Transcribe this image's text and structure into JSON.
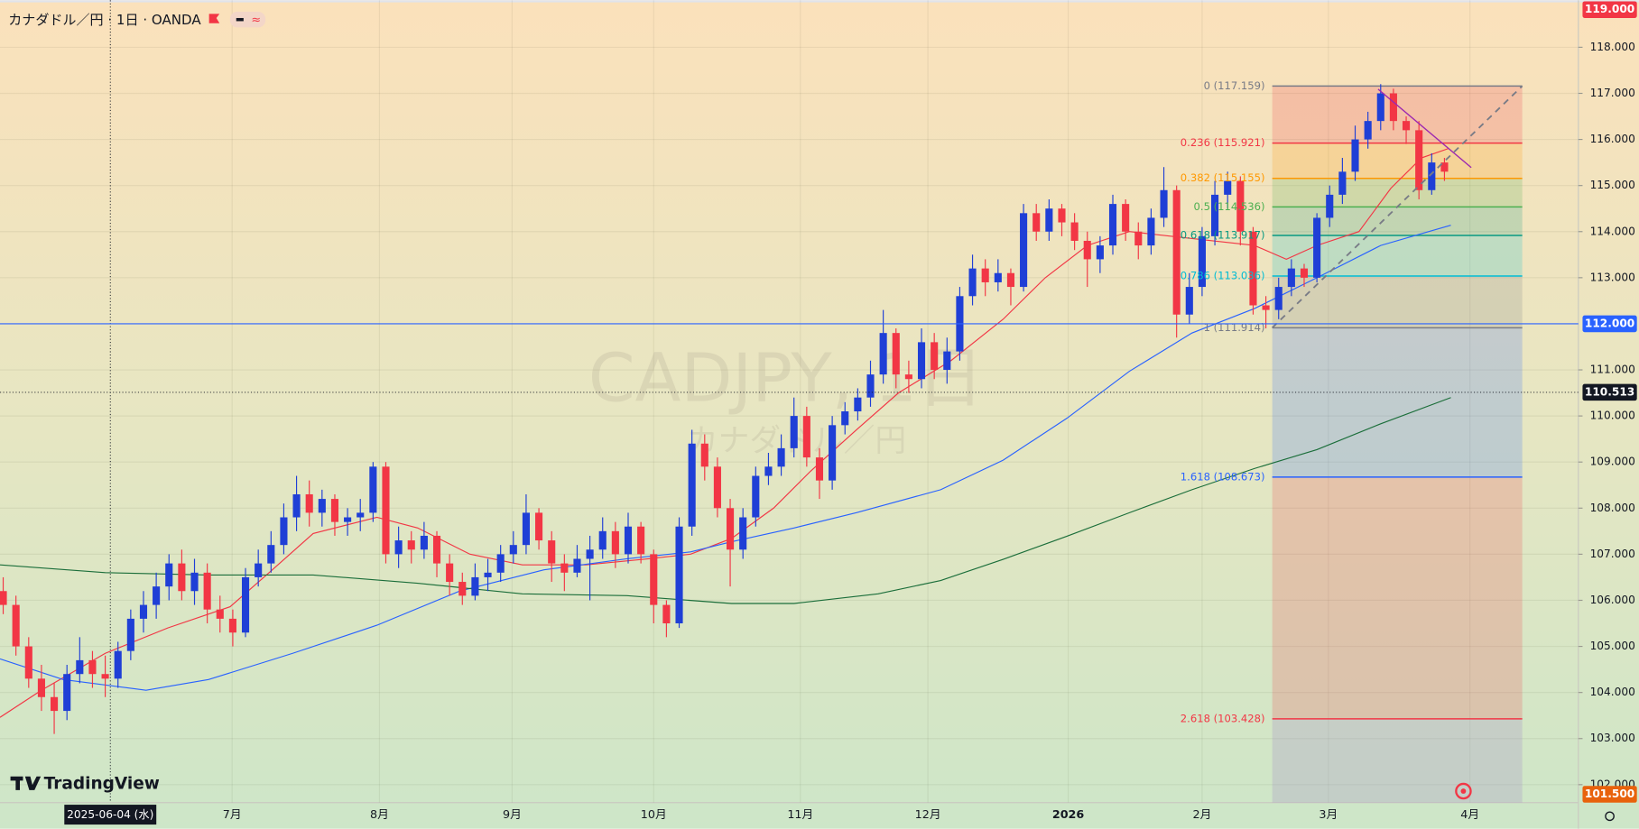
{
  "chart_data": {
    "type": "candlestick",
    "title": "カナダドル／円 · 1日 · OANDA",
    "watermark": "CADJPY, 1日",
    "watermark_subtitle": "カナダドル／円",
    "brand": "TradingView",
    "up_color": "#1f3fd6",
    "down_color": "#f23645",
    "grid": true,
    "xlim": [
      -0.25,
      123.5
    ],
    "ylim": [
      101.61,
      119.02
    ],
    "xticks": [
      {
        "value": 17.95,
        "label": "7月"
      },
      {
        "value": 29.5,
        "label": "8月"
      },
      {
        "value": 39.9,
        "label": "9月"
      },
      {
        "value": 51.0,
        "label": "10月"
      },
      {
        "value": 62.5,
        "label": "11月"
      },
      {
        "value": 72.5,
        "label": "12月"
      },
      {
        "value": 83.5,
        "label": "2026"
      },
      {
        "value": 94.0,
        "label": "2月"
      },
      {
        "value": 103.9,
        "label": "3月"
      },
      {
        "value": 115.0,
        "label": "4月"
      }
    ],
    "yticks": [
      {
        "value": 102,
        "label": "102.000"
      },
      {
        "value": 103,
        "label": "103.000"
      },
      {
        "value": 104,
        "label": "104.000"
      },
      {
        "value": 105,
        "label": "105.000"
      },
      {
        "value": 106,
        "label": "106.000"
      },
      {
        "value": 107,
        "label": "107.000"
      },
      {
        "value": 108,
        "label": "108.000"
      },
      {
        "value": 109,
        "label": "109.000"
      },
      {
        "value": 110,
        "label": "110.000"
      },
      {
        "value": 111,
        "label": "111.000"
      },
      {
        "value": 113,
        "label": "113.000"
      },
      {
        "value": 114,
        "label": "114.000"
      },
      {
        "value": 115,
        "label": "115.000"
      },
      {
        "value": 116,
        "label": "116.000"
      },
      {
        "value": 117,
        "label": "117.000"
      },
      {
        "value": 118,
        "label": "118.000"
      }
    ],
    "price_labels": [
      {
        "value": 119,
        "label": "119.000",
        "color": "#f23645"
      },
      {
        "value": 112,
        "label": "112.000",
        "color": "#2962ff",
        "line": "solid"
      },
      {
        "value": 110.513,
        "label": "110.513",
        "color": "#131722",
        "line": "dotted"
      },
      {
        "value": 101.5,
        "label": "101.500",
        "color": "#e8620c"
      }
    ],
    "crosshair": {
      "value": 8.4,
      "label": "2025-06-04 (水)"
    },
    "ohlc": [
      [
        106.2,
        106.5,
        105.7,
        105.9
      ],
      [
        105.9,
        106.1,
        104.8,
        105.0
      ],
      [
        105.0,
        105.2,
        104.1,
        104.3
      ],
      [
        104.3,
        104.6,
        103.6,
        103.9
      ],
      [
        103.9,
        104.2,
        103.1,
        103.6
      ],
      [
        103.6,
        104.6,
        103.4,
        104.4
      ],
      [
        104.4,
        105.2,
        104.2,
        104.7
      ],
      [
        104.7,
        104.9,
        104.1,
        104.4
      ],
      [
        104.4,
        104.8,
        103.9,
        104.3
      ],
      [
        104.3,
        105.1,
        104.1,
        104.9
      ],
      [
        104.9,
        105.8,
        104.7,
        105.6
      ],
      [
        105.6,
        106.2,
        105.3,
        105.9
      ],
      [
        105.9,
        106.6,
        105.6,
        106.3
      ],
      [
        106.3,
        107.0,
        106.0,
        106.8
      ],
      [
        106.8,
        107.1,
        106.0,
        106.2
      ],
      [
        106.2,
        106.9,
        105.9,
        106.6
      ],
      [
        106.6,
        106.8,
        105.5,
        105.8
      ],
      [
        105.8,
        106.1,
        105.3,
        105.6
      ],
      [
        105.6,
        105.8,
        105.0,
        105.3
      ],
      [
        105.3,
        106.7,
        105.2,
        106.5
      ],
      [
        106.5,
        107.1,
        106.3,
        106.8
      ],
      [
        106.8,
        107.5,
        106.6,
        107.2
      ],
      [
        107.2,
        108.1,
        107.0,
        107.8
      ],
      [
        107.8,
        108.7,
        107.5,
        108.3
      ],
      [
        108.3,
        108.6,
        107.6,
        107.9
      ],
      [
        107.9,
        108.4,
        107.6,
        108.2
      ],
      [
        108.2,
        108.3,
        107.4,
        107.7
      ],
      [
        107.7,
        108.0,
        107.4,
        107.8
      ],
      [
        107.8,
        108.2,
        107.5,
        107.9
      ],
      [
        107.9,
        109.0,
        107.7,
        108.9
      ],
      [
        108.9,
        109.0,
        106.8,
        107.0
      ],
      [
        107.0,
        107.6,
        106.7,
        107.3
      ],
      [
        107.3,
        107.5,
        106.8,
        107.1
      ],
      [
        107.1,
        107.7,
        106.9,
        107.4
      ],
      [
        107.4,
        107.5,
        106.5,
        106.8
      ],
      [
        106.8,
        107.0,
        106.1,
        106.4
      ],
      [
        106.4,
        106.6,
        105.9,
        106.1
      ],
      [
        106.1,
        106.8,
        106.0,
        106.5
      ],
      [
        106.5,
        106.9,
        106.2,
        106.6
      ],
      [
        106.6,
        107.2,
        106.4,
        107.0
      ],
      [
        107.0,
        107.5,
        106.8,
        107.2
      ],
      [
        107.2,
        108.3,
        107.0,
        107.9
      ],
      [
        107.9,
        108.0,
        107.1,
        107.3
      ],
      [
        107.3,
        107.5,
        106.4,
        106.8
      ],
      [
        106.8,
        107.0,
        106.2,
        106.6
      ],
      [
        106.6,
        107.2,
        106.5,
        106.9
      ],
      [
        106.9,
        107.4,
        106.0,
        107.1
      ],
      [
        107.1,
        107.8,
        106.9,
        107.5
      ],
      [
        107.5,
        107.7,
        106.7,
        107.0
      ],
      [
        107.0,
        107.9,
        106.8,
        107.6
      ],
      [
        107.6,
        107.7,
        106.8,
        107.0
      ],
      [
        107.0,
        107.1,
        105.5,
        105.9
      ],
      [
        105.9,
        106.0,
        105.2,
        105.5
      ],
      [
        105.5,
        107.8,
        105.4,
        107.6
      ],
      [
        107.6,
        109.7,
        107.4,
        109.4
      ],
      [
        109.4,
        109.6,
        108.6,
        108.9
      ],
      [
        108.9,
        109.1,
        107.8,
        108.0
      ],
      [
        108.0,
        108.2,
        106.3,
        107.1
      ],
      [
        107.1,
        108.0,
        106.9,
        107.8
      ],
      [
        107.8,
        108.9,
        107.6,
        108.7
      ],
      [
        108.7,
        109.2,
        108.5,
        108.9
      ],
      [
        108.9,
        109.6,
        108.7,
        109.3
      ],
      [
        109.3,
        110.4,
        109.1,
        110.0
      ],
      [
        110.0,
        110.2,
        108.9,
        109.1
      ],
      [
        109.1,
        109.3,
        108.2,
        108.6
      ],
      [
        108.6,
        110.0,
        108.4,
        109.8
      ],
      [
        109.8,
        110.3,
        109.6,
        110.1
      ],
      [
        110.1,
        110.6,
        109.9,
        110.4
      ],
      [
        110.4,
        111.2,
        110.2,
        110.9
      ],
      [
        110.9,
        112.3,
        110.7,
        111.8
      ],
      [
        111.8,
        111.9,
        110.6,
        110.9
      ],
      [
        110.9,
        111.2,
        110.5,
        110.8
      ],
      [
        110.8,
        111.9,
        110.6,
        111.6
      ],
      [
        111.6,
        111.8,
        110.8,
        111.0
      ],
      [
        111.0,
        111.7,
        110.7,
        111.4
      ],
      [
        111.4,
        112.8,
        111.2,
        112.6
      ],
      [
        112.6,
        113.5,
        112.4,
        113.2
      ],
      [
        113.2,
        113.4,
        112.6,
        112.9
      ],
      [
        112.9,
        113.4,
        112.7,
        113.1
      ],
      [
        113.1,
        113.2,
        112.4,
        112.8
      ],
      [
        112.8,
        114.6,
        112.7,
        114.4
      ],
      [
        114.4,
        114.6,
        113.8,
        114.0
      ],
      [
        114.0,
        114.7,
        113.8,
        114.5
      ],
      [
        114.5,
        114.6,
        113.9,
        114.2
      ],
      [
        114.2,
        114.4,
        113.6,
        113.8
      ],
      [
        113.8,
        114.0,
        112.8,
        113.4
      ],
      [
        113.4,
        113.9,
        113.1,
        113.7
      ],
      [
        113.7,
        114.8,
        113.5,
        114.6
      ],
      [
        114.6,
        114.7,
        113.8,
        114.0
      ],
      [
        114.0,
        114.2,
        113.4,
        113.7
      ],
      [
        113.7,
        114.5,
        113.5,
        114.3
      ],
      [
        114.3,
        115.4,
        114.1,
        114.9
      ],
      [
        114.9,
        115.0,
        111.7,
        112.2
      ],
      [
        112.2,
        113.1,
        112.0,
        112.8
      ],
      [
        112.8,
        114.1,
        112.6,
        113.9
      ],
      [
        113.9,
        115.1,
        113.7,
        114.8
      ],
      [
        114.8,
        115.3,
        114.5,
        115.1
      ],
      [
        115.1,
        115.2,
        113.7,
        114.0
      ],
      [
        114.0,
        114.1,
        112.2,
        112.4
      ],
      [
        112.4,
        112.6,
        111.9,
        112.3
      ],
      [
        112.3,
        113.0,
        112.1,
        112.8
      ],
      [
        112.8,
        113.4,
        112.6,
        113.2
      ],
      [
        113.2,
        113.3,
        112.8,
        113.0
      ],
      [
        113.0,
        114.4,
        112.9,
        114.3
      ],
      [
        114.3,
        115.0,
        114.1,
        114.8
      ],
      [
        114.8,
        115.6,
        114.6,
        115.3
      ],
      [
        115.3,
        116.3,
        115.1,
        116.0
      ],
      [
        116.0,
        116.6,
        115.8,
        116.4
      ],
      [
        116.4,
        117.2,
        116.2,
        117.0
      ],
      [
        117.0,
        117.1,
        116.2,
        116.4
      ],
      [
        116.4,
        116.5,
        115.9,
        116.2
      ],
      [
        116.2,
        116.4,
        114.7,
        114.9
      ],
      [
        114.9,
        115.7,
        114.8,
        115.5
      ],
      [
        115.5,
        115.6,
        115.1,
        115.3
      ]
    ],
    "series": [
      {
        "color": "#f23645",
        "x": [
          -0.25,
          3.0,
          8.0,
          12.9,
          17.8,
          21.1,
          24.3,
          29.3,
          32.5,
          36.6,
          40.7,
          45.7,
          50.6,
          53.9,
          57.1,
          60.4,
          63.3,
          66.9,
          70.2,
          74.3,
          78.4,
          81.7,
          85.0,
          88.3,
          91.6,
          94.9,
          98.1,
          100.6,
          103.0,
          106.3,
          108.8,
          111.2,
          113.3
        ],
        "values": [
          103.46,
          104.05,
          104.85,
          105.4,
          105.86,
          106.66,
          107.45,
          107.8,
          107.57,
          107.0,
          106.77,
          106.77,
          106.9,
          107.0,
          107.34,
          108.0,
          108.8,
          109.7,
          110.5,
          111.2,
          112.1,
          113.0,
          113.7,
          114.0,
          113.9,
          113.8,
          113.7,
          113.4,
          113.7,
          114.0,
          114.94,
          115.6,
          115.8
        ]
      },
      {
        "color": "#2962ff",
        "x": [
          -0.25,
          4.7,
          11.2,
          16.1,
          22.7,
          29.3,
          35.8,
          42.4,
          48.9,
          53.9,
          57.1,
          62.0,
          66.9,
          73.5,
          78.4,
          83.4,
          88.3,
          93.2,
          98.1,
          103.0,
          108.0,
          113.5
        ],
        "values": [
          104.73,
          104.28,
          104.05,
          104.28,
          104.85,
          105.46,
          106.2,
          106.66,
          106.9,
          107.05,
          107.27,
          107.57,
          107.9,
          108.4,
          109.04,
          109.95,
          110.97,
          111.8,
          112.33,
          113.0,
          113.7,
          114.14
        ]
      },
      {
        "color": "#1b6e3a",
        "x": [
          -0.25,
          8.0,
          16.1,
          24.3,
          32.5,
          40.7,
          48.9,
          57.1,
          62.0,
          68.6,
          73.5,
          78.4,
          83.4,
          88.3,
          93.2,
          98.1,
          103.0,
          108.0,
          113.5
        ],
        "values": [
          106.77,
          106.6,
          106.55,
          106.55,
          106.37,
          106.14,
          106.1,
          105.93,
          105.93,
          106.14,
          106.43,
          106.89,
          107.39,
          107.9,
          108.4,
          108.86,
          109.27,
          109.83,
          110.4
        ]
      }
    ],
    "fib": {
      "x": [
        99.5,
        119.1
      ],
      "levels": [
        {
          "value": 117.159,
          "label": "0 (117.159)",
          "color": "#787b86"
        },
        {
          "value": 115.921,
          "label": "0.236 (115.921)",
          "color": "#f23645"
        },
        {
          "value": 115.155,
          "label": "0.382 (115.155)",
          "color": "#ff9800"
        },
        {
          "value": 114.536,
          "label": "0.5 (114.536)",
          "color": "#4caf50"
        },
        {
          "value": 113.917,
          "label": "0.618 (113.917)",
          "color": "#089981"
        },
        {
          "value": 113.036,
          "label": "0.786 (113.036)",
          "color": "#00bcd4"
        },
        {
          "value": 111.914,
          "label": "1 (111.914)",
          "color": "#787b86"
        },
        {
          "value": 108.673,
          "label": "1.618 (108.673)",
          "color": "#2962ff"
        },
        {
          "value": 103.428,
          "label": "2.618 (103.428)",
          "color": "#f23645"
        }
      ]
    },
    "trendline": {
      "color": "#9c27b0",
      "x": [
        107.8,
        115.1
      ],
      "values": [
        117.09,
        115.39
      ]
    }
  }
}
